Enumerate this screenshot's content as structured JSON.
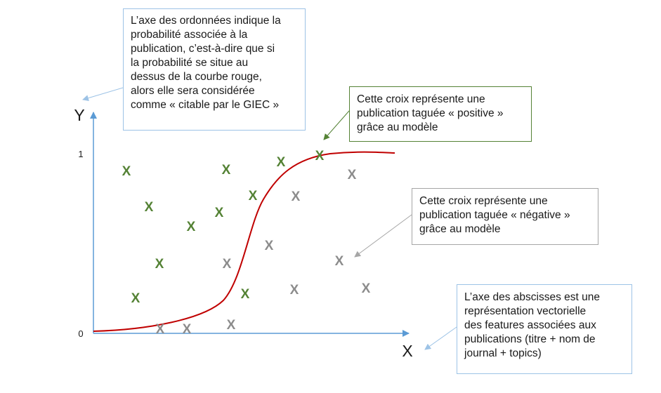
{
  "axes": {
    "y_name": "Y",
    "x_name": "X",
    "y_tick_top": "1",
    "y_tick_bottom": "0",
    "axis_color": "#5b9bd5"
  },
  "curve": {
    "color": "#c00000"
  },
  "marker": {
    "glyph": "X"
  },
  "colors": {
    "positive": "#548235",
    "negative": "#8c8c8c"
  },
  "callouts": {
    "y_axis": {
      "lines": [
        "L’axe des ordonnées indique la",
        "probabilité associée à la",
        "publication, c’est-à-dire que si",
        "la probabilité se situe au",
        "dessus de la courbe rouge,",
        "alors elle sera considérée",
        "comme « citable par le GIEC »"
      ],
      "border_color": "#9dc3e6"
    },
    "positive": {
      "lines": [
        "Cette croix représente une",
        "publication taguée « positive »",
        "grâce au modèle"
      ],
      "border_color": "#548235"
    },
    "negative": {
      "lines": [
        "Cette croix représente une",
        "publication taguée « négative »",
        "grâce au modèle"
      ],
      "border_color": "#a6a6a6"
    },
    "x_axis": {
      "lines": [
        "L’axe des abscisses est une",
        "représentation vectorielle",
        "des features associées aux",
        "publications (titre + nom de",
        "journal + topics)"
      ],
      "border_color": "#9dc3e6"
    }
  }
}
